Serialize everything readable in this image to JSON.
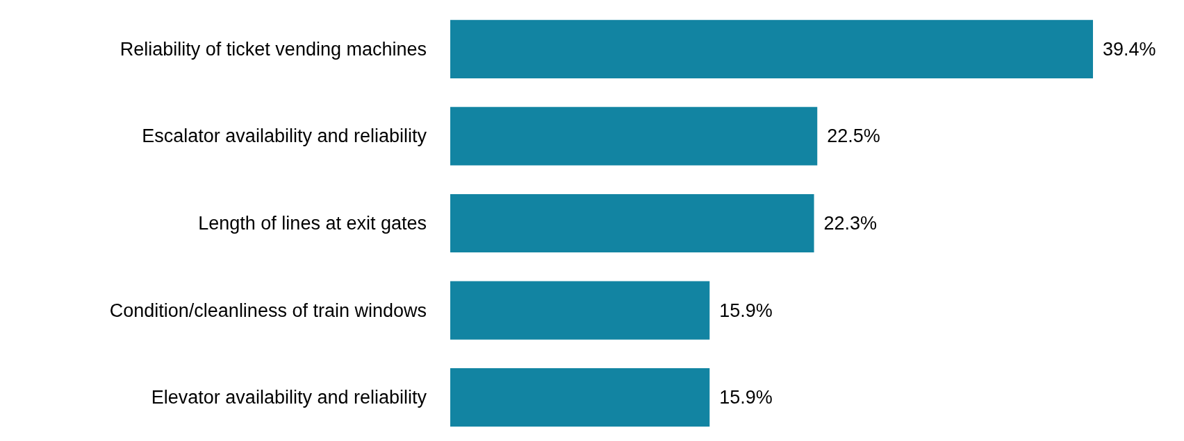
{
  "chart_data": {
    "type": "bar",
    "orientation": "horizontal",
    "categories": [
      "Reliability of ticket vending machines",
      "Escalator availability and reliability",
      "Length of lines at exit gates",
      "Condition/cleanliness of train windows",
      "Elevator availability and reliability"
    ],
    "values": [
      39.4,
      22.5,
      22.3,
      15.9,
      15.9
    ],
    "value_labels": [
      "39.4%",
      "22.5%",
      "22.3%",
      "15.9%",
      "15.9%"
    ],
    "color": "#1284a2"
  }
}
